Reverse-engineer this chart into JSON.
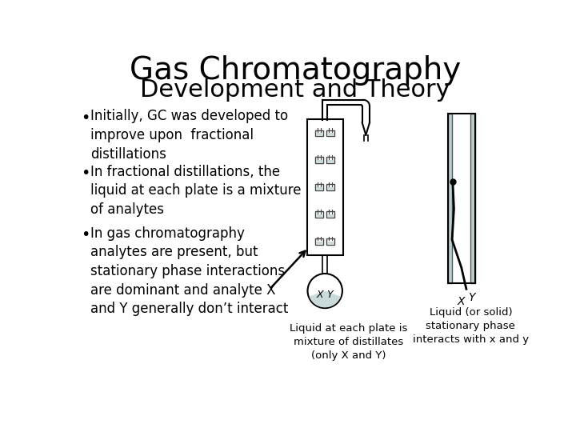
{
  "title_line1": "Gas Chromatography",
  "title_line2": "Development and Theory",
  "title_fontsize": 28,
  "subtitle_fontsize": 22,
  "bullet_fontsize": 12,
  "bullets": [
    "Initially, GC was developed to\nimprove upon  fractional\ndistillations",
    "In fractional distillations, the\nliquid at each plate is a mixture\nof analytes",
    "In gas chromatography\nanalytes are present, but\nstationary phase interactions\nare dominant and analyte X\nand Y generally don’t interact"
  ],
  "caption_left": "Liquid at each plate is\nmixture of distillates\n(only X and Y)",
  "caption_right": "Liquid (or solid)\nstationary phase\ninteracts with x and y",
  "bg_color": "#ffffff",
  "text_color": "#000000",
  "plate_fill": "#c8dada",
  "flask_fill": "#c8dada",
  "gc_fill": "#b8d0d0"
}
